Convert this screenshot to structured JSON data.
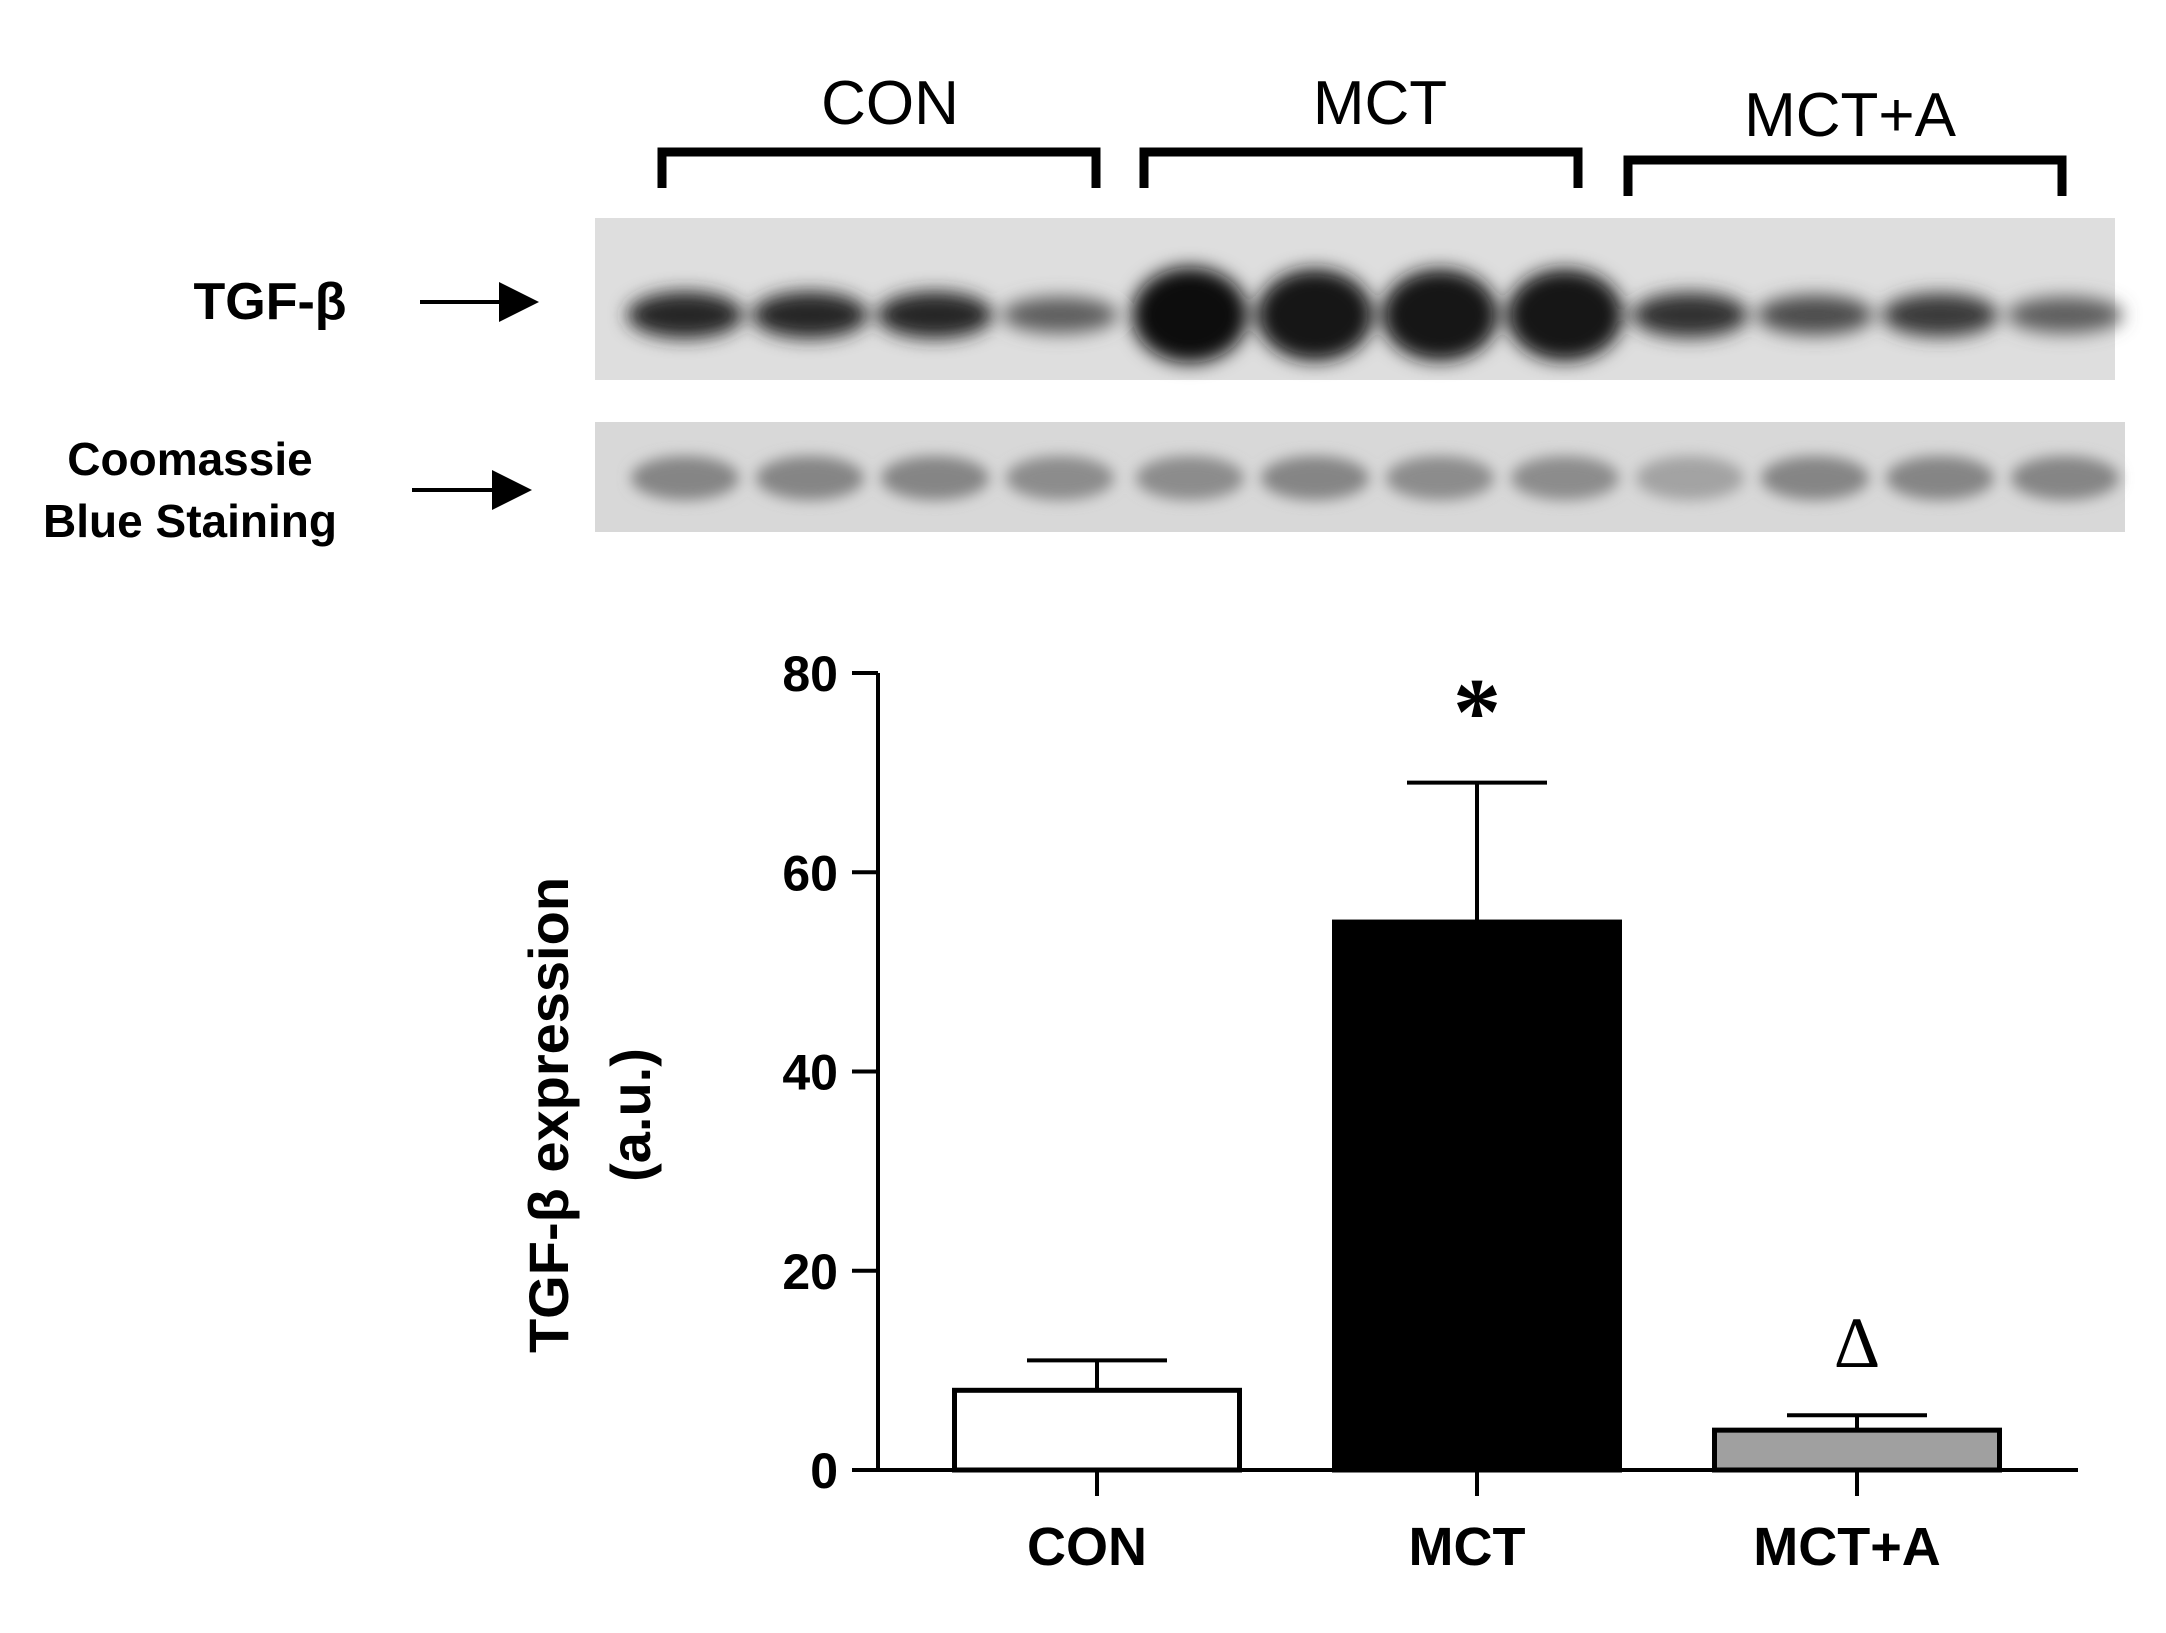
{
  "blot": {
    "groups": [
      {
        "label": "CON"
      },
      {
        "label": "MCT"
      },
      {
        "label": "MCT+A"
      }
    ],
    "rows": [
      {
        "label": "TGF-β",
        "band_intensity": [
          0.85,
          0.85,
          0.85,
          0.55,
          1.0,
          0.95,
          0.95,
          0.95,
          0.8,
          0.65,
          0.75,
          0.55
        ]
      },
      {
        "label": "Coomassie Blue Staining",
        "band_intensity": [
          0.55,
          0.55,
          0.55,
          0.5,
          0.5,
          0.55,
          0.5,
          0.5,
          0.35,
          0.55,
          0.55,
          0.55
        ]
      }
    ]
  },
  "chart_data": {
    "type": "bar",
    "categories": [
      "CON",
      "MCT",
      "MCT+A"
    ],
    "values": [
      8,
      55,
      4
    ],
    "errors": [
      3,
      14,
      1.5
    ],
    "annotations": [
      "",
      "*",
      "Δ"
    ],
    "bar_colors": [
      "#ffffff",
      "#000000",
      "#a0a0a0"
    ],
    "ylabel_line1": "TGF-β expression",
    "ylabel_line2": "(a.u.)",
    "ylim": [
      0,
      80
    ],
    "yticks": [
      "0",
      "20",
      "40",
      "60",
      "80"
    ],
    "grid": false
  }
}
